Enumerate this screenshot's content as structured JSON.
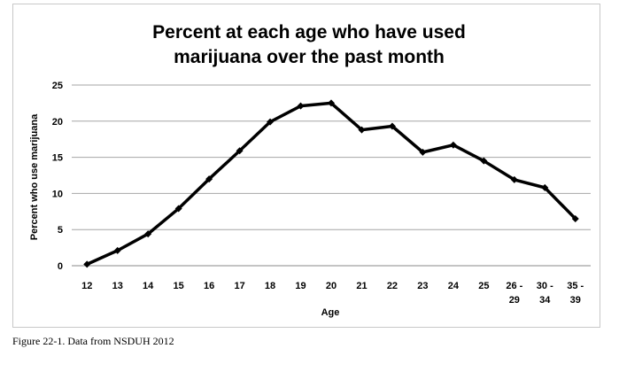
{
  "chart_data": {
    "type": "line",
    "title_lines": [
      "Percent at each age who have used",
      "marijuana over the past month"
    ],
    "xlabel": "Age",
    "ylabel": "Percent who use marijuana",
    "categories": [
      "12",
      "13",
      "14",
      "15",
      "16",
      "17",
      "18",
      "19",
      "20",
      "21",
      "22",
      "23",
      "24",
      "25",
      "26 - 29",
      "30 - 34",
      "35 - 39"
    ],
    "category_lines": [
      [
        "12"
      ],
      [
        "13"
      ],
      [
        "14"
      ],
      [
        "15"
      ],
      [
        "16"
      ],
      [
        "17"
      ],
      [
        "18"
      ],
      [
        "19"
      ],
      [
        "20"
      ],
      [
        "21"
      ],
      [
        "22"
      ],
      [
        "23"
      ],
      [
        "24"
      ],
      [
        "25"
      ],
      [
        "26 -",
        "29"
      ],
      [
        "30 -",
        "34"
      ],
      [
        "35 -",
        "39"
      ]
    ],
    "series": [
      {
        "values": [
          0.2,
          2.1,
          4.4,
          7.9,
          12.0,
          15.9,
          19.9,
          22.1,
          22.5,
          18.8,
          19.3,
          15.7,
          16.7,
          14.5,
          11.9,
          10.8,
          6.5
        ]
      }
    ],
    "ylim": [
      0,
      25
    ],
    "yticks": [
      0,
      5,
      10,
      15,
      20,
      25
    ],
    "grid": true,
    "legend": "none",
    "line_color": "#000000",
    "grid_color": "#a6a6a6"
  },
  "caption": "Figure 22-1. Data from NSDUH 2012"
}
